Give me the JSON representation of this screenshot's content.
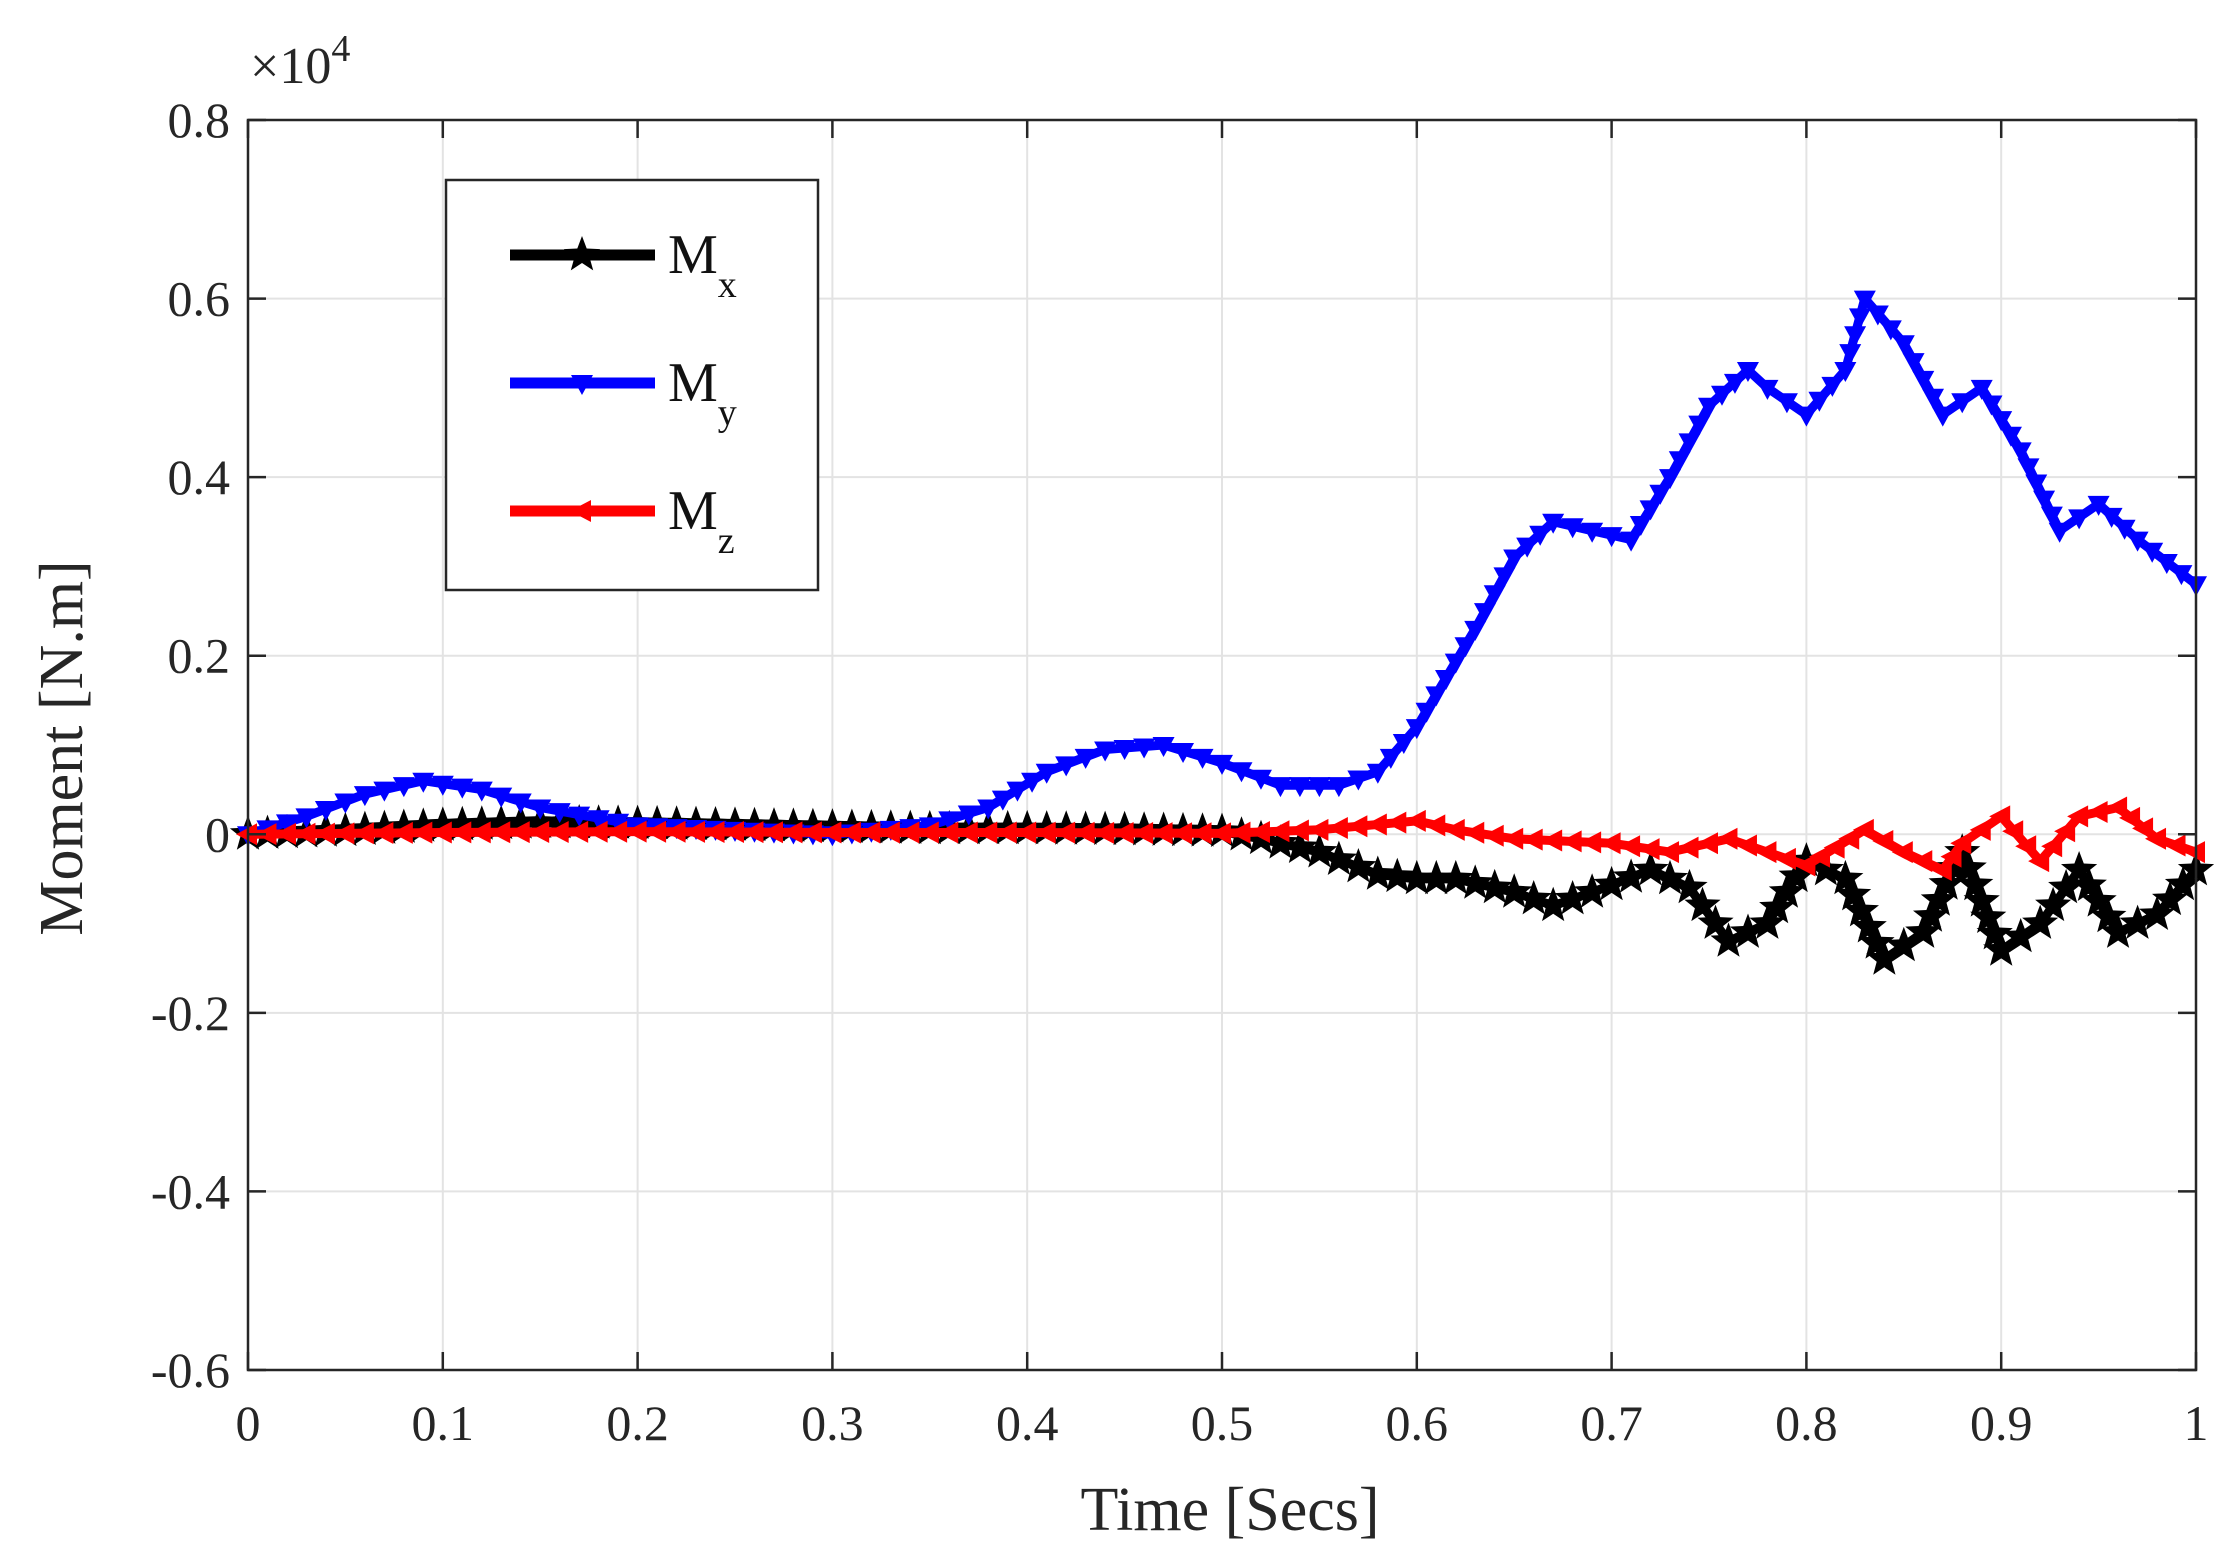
{
  "chart_data": {
    "type": "line",
    "xlabel": "Time [Secs]",
    "ylabel": "Moment [N.m]",
    "y_multiplier_label": "×10",
    "y_multiplier_exponent": "4",
    "xlim": [
      0,
      1
    ],
    "ylim": [
      -0.6,
      0.8
    ],
    "grid": true,
    "legend_position": "top-left",
    "x_ticks": [
      0,
      0.1,
      0.2,
      0.3,
      0.4,
      0.5,
      0.6,
      0.7,
      0.8,
      0.9,
      1
    ],
    "x_tick_labels": [
      "0",
      "0.1",
      "0.2",
      "0.3",
      "0.4",
      "0.5",
      "0.6",
      "0.7",
      "0.8",
      "0.9",
      "1"
    ],
    "y_ticks": [
      -0.6,
      -0.4,
      -0.2,
      0,
      0.2,
      0.4,
      0.6,
      0.8
    ],
    "y_tick_labels": [
      "-0.6",
      "-0.4",
      "-0.2",
      "0",
      "0.2",
      "0.4",
      "0.6",
      "0.8"
    ],
    "series": [
      {
        "name": "Mx",
        "legend_main": "M",
        "legend_sub": "x",
        "color": "#000000",
        "marker": "star",
        "x": [
          0,
          0.05,
          0.1,
          0.15,
          0.2,
          0.25,
          0.3,
          0.35,
          0.4,
          0.45,
          0.5,
          0.52,
          0.55,
          0.58,
          0.6,
          0.62,
          0.65,
          0.67,
          0.69,
          0.72,
          0.74,
          0.76,
          0.78,
          0.8,
          0.82,
          0.84,
          0.86,
          0.88,
          0.9,
          0.92,
          0.94,
          0.96,
          0.98,
          1.0
        ],
        "values": [
          0,
          0.004,
          0.01,
          0.013,
          0.012,
          0.01,
          0.008,
          0.006,
          0.006,
          0.005,
          0.003,
          -0.005,
          -0.02,
          -0.045,
          -0.05,
          -0.05,
          -0.065,
          -0.08,
          -0.065,
          -0.04,
          -0.06,
          -0.12,
          -0.1,
          -0.03,
          -0.05,
          -0.14,
          -0.11,
          -0.02,
          -0.13,
          -0.1,
          -0.04,
          -0.11,
          -0.09,
          -0.04
        ]
      },
      {
        "name": "My",
        "legend_main": "M",
        "legend_sub": "y",
        "color": "#0000ff",
        "marker": "triangle-down",
        "x": [
          0,
          0.03,
          0.06,
          0.09,
          0.12,
          0.15,
          0.2,
          0.25,
          0.3,
          0.35,
          0.38,
          0.41,
          0.44,
          0.47,
          0.5,
          0.53,
          0.56,
          0.58,
          0.6,
          0.63,
          0.65,
          0.67,
          0.69,
          0.71,
          0.73,
          0.75,
          0.77,
          0.78,
          0.8,
          0.82,
          0.83,
          0.85,
          0.87,
          0.89,
          0.91,
          0.93,
          0.95,
          0.97,
          1.0
        ],
        "values": [
          0,
          0.02,
          0.045,
          0.06,
          0.05,
          0.03,
          0.01,
          0.005,
          0,
          0.01,
          0.03,
          0.07,
          0.095,
          0.1,
          0.08,
          0.055,
          0.055,
          0.07,
          0.12,
          0.23,
          0.31,
          0.35,
          0.34,
          0.33,
          0.4,
          0.48,
          0.52,
          0.5,
          0.47,
          0.52,
          0.6,
          0.55,
          0.47,
          0.5,
          0.43,
          0.34,
          0.37,
          0.33,
          0.28
        ]
      },
      {
        "name": "Mz",
        "legend_main": "M",
        "legend_sub": "z",
        "color": "#ff0000",
        "marker": "triangle-left",
        "x": [
          0,
          0.1,
          0.2,
          0.3,
          0.4,
          0.5,
          0.55,
          0.6,
          0.62,
          0.65,
          0.7,
          0.73,
          0.76,
          0.8,
          0.83,
          0.85,
          0.87,
          0.88,
          0.9,
          0.92,
          0.94,
          0.96,
          0.98,
          1.0
        ],
        "values": [
          0,
          0.002,
          0.003,
          0.002,
          0.002,
          0.001,
          0.005,
          0.015,
          0.005,
          -0.005,
          -0.01,
          -0.02,
          -0.005,
          -0.035,
          0.005,
          -0.02,
          -0.04,
          -0.01,
          0.02,
          -0.03,
          0.02,
          0.03,
          -0.005,
          -0.02
        ]
      }
    ]
  }
}
